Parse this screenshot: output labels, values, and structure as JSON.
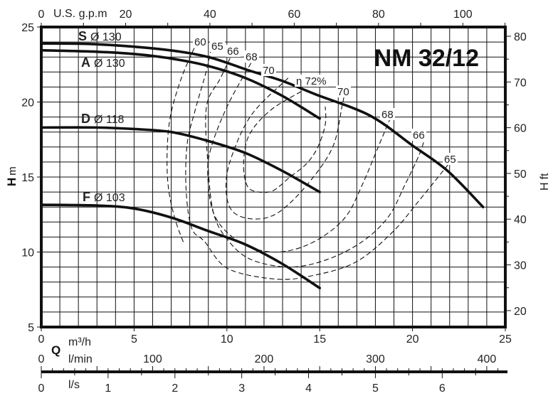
{
  "chart_data": {
    "type": "line",
    "title": "NM 32/12",
    "x_axis": {
      "symbol": "Q",
      "unit": "m³/h",
      "range": [
        0,
        25
      ],
      "ticks": [
        "0",
        "5",
        "10",
        "15",
        "20",
        "25"
      ],
      "grid_step": 1
    },
    "y_axis": {
      "symbol": "H",
      "unit": "m",
      "range": [
        5,
        25
      ],
      "ticks": [
        "5",
        "10",
        "15",
        "20",
        "25"
      ],
      "grid_step": 1
    },
    "y2_axis": {
      "symbol": "H",
      "unit": "ft",
      "ticks": [
        "20",
        "30",
        "40",
        "50",
        "60",
        "70",
        "80"
      ],
      "tick_values": [
        20,
        30,
        40,
        50,
        60,
        70,
        80
      ]
    },
    "top_axis": {
      "unit": "U.S. g.p.m",
      "ticks": [
        "0",
        "20",
        "40",
        "60",
        "80",
        "100"
      ],
      "tick_values": [
        0,
        20,
        40,
        60,
        80,
        100
      ]
    },
    "lmin_axis": {
      "unit": "l/min",
      "ticks": [
        "0",
        "100",
        "200",
        "300",
        "400"
      ],
      "tick_values": [
        0,
        100,
        200,
        300,
        400
      ]
    },
    "ls_axis": {
      "unit": "l/s",
      "ticks": [
        "0",
        "1",
        "2",
        "3",
        "4",
        "5",
        "6"
      ],
      "tick_values": [
        0,
        1,
        2,
        3,
        4,
        5,
        6
      ]
    },
    "grid": true,
    "series": [
      {
        "name": "S",
        "impeller": "Ø 130",
        "points": [
          [
            0,
            23.9
          ],
          [
            3,
            23.85
          ],
          [
            6.6,
            23.5
          ],
          [
            9,
            23.0
          ],
          [
            11.2,
            22.1
          ],
          [
            13,
            21.4
          ],
          [
            14.8,
            20.5
          ],
          [
            17.7,
            19.1
          ],
          [
            20,
            17.1
          ],
          [
            21.9,
            15.4
          ],
          [
            23.8,
            13.0
          ]
        ]
      },
      {
        "name": "A",
        "impeller": "Ø 130",
        "points": [
          [
            0,
            23.45
          ],
          [
            3,
            23.35
          ],
          [
            5,
            23.2
          ],
          [
            7,
            22.9
          ],
          [
            9,
            22.4
          ],
          [
            11,
            21.6
          ],
          [
            13,
            20.4
          ],
          [
            15,
            18.9
          ]
        ]
      },
      {
        "name": "D",
        "impeller": "Ø 118",
        "points": [
          [
            0,
            18.3
          ],
          [
            3,
            18.3
          ],
          [
            5,
            18.2
          ],
          [
            7,
            18.0
          ],
          [
            9,
            17.4
          ],
          [
            11,
            16.6
          ],
          [
            13,
            15.4
          ],
          [
            15,
            14.0
          ]
        ]
      },
      {
        "name": "F",
        "impeller": "Ø 103",
        "points": [
          [
            0,
            13.15
          ],
          [
            3,
            13.1
          ],
          [
            5,
            12.9
          ],
          [
            7,
            12.3
          ],
          [
            9,
            11.4
          ],
          [
            11,
            10.5
          ],
          [
            13,
            9.2
          ],
          [
            15,
            7.6
          ]
        ]
      }
    ],
    "efficiency_curves": [
      {
        "label": "60",
        "points": [
          [
            8.24,
            23.6
          ],
          [
            7.55,
            21.6
          ],
          [
            6.98,
            19.2
          ],
          [
            6.79,
            17.0
          ],
          [
            6.83,
            14.5
          ],
          [
            7.17,
            12.35
          ],
          [
            7.67,
            10.6
          ]
        ]
      },
      {
        "label": "65",
        "points": [
          [
            9.15,
            23.6
          ],
          [
            8.9,
            22.1
          ],
          [
            8.3,
            19.5
          ],
          [
            7.86,
            17.2
          ],
          [
            7.8,
            14.2
          ],
          [
            8.1,
            11.6
          ],
          [
            8.8,
            10.7
          ],
          [
            10.05,
            8.9
          ],
          [
            12.6,
            8.2
          ],
          [
            14.5,
            8.4
          ],
          [
            16.9,
            9.3
          ],
          [
            18.9,
            11.3
          ],
          [
            20.4,
            13.5
          ],
          [
            21.9,
            15.8
          ]
        ]
      },
      {
        "label": "66",
        "points": [
          [
            10.35,
            23.4
          ],
          [
            9.66,
            21.6
          ],
          [
            8.9,
            19.7
          ],
          [
            8.97,
            16.0
          ],
          [
            9.28,
            12.6
          ],
          [
            10.05,
            10.8
          ],
          [
            11.3,
            9.5
          ],
          [
            13.4,
            9.0
          ],
          [
            15.4,
            9.5
          ],
          [
            17.3,
            10.7
          ],
          [
            18.7,
            12.35
          ],
          [
            19.6,
            14.5
          ],
          [
            20.4,
            16.6
          ],
          [
            20.7,
            17.8
          ]
        ]
      },
      {
        "label": "68",
        "points": [
          [
            11.3,
            22.6
          ],
          [
            10.05,
            19.8
          ],
          [
            9.16,
            17.0
          ],
          [
            8.97,
            15.1
          ],
          [
            9.28,
            12.6
          ],
          [
            10.3,
            11.0
          ],
          [
            11.85,
            10.1
          ],
          [
            13.4,
            10.1
          ],
          [
            15.0,
            10.9
          ],
          [
            16.4,
            12.35
          ],
          [
            17.3,
            14.5
          ],
          [
            18.1,
            16.85
          ],
          [
            18.9,
            19.2
          ]
        ]
      },
      {
        "label": "70",
        "points": [
          [
            13.3,
            21.6
          ],
          [
            11.3,
            19.1
          ],
          [
            10.16,
            16.0
          ],
          [
            9.97,
            13.9
          ],
          [
            10.4,
            12.6
          ],
          [
            11.6,
            12.2
          ],
          [
            12.85,
            12.7
          ],
          [
            14.4,
            14.6
          ],
          [
            15.7,
            17.0
          ],
          [
            16.2,
            19.7
          ],
          [
            16.3,
            20.3
          ]
        ]
      },
      {
        "label": "η 72%",
        "points": [
          [
            14.0,
            20.7
          ],
          [
            12.35,
            19.45
          ],
          [
            11.2,
            17.8
          ],
          [
            10.9,
            15.9
          ],
          [
            11.1,
            14.4
          ],
          [
            11.7,
            14.0
          ],
          [
            12.5,
            14.1
          ],
          [
            13.4,
            15.0
          ],
          [
            14.3,
            15.9
          ],
          [
            14.9,
            17.0
          ],
          [
            15.3,
            18.5
          ],
          [
            15.3,
            19.7
          ]
        ]
      }
    ],
    "efficiency_labels": [
      "60",
      "65",
      "66",
      "68",
      "70",
      "η 72%",
      "70",
      "68",
      "66",
      "65"
    ]
  }
}
